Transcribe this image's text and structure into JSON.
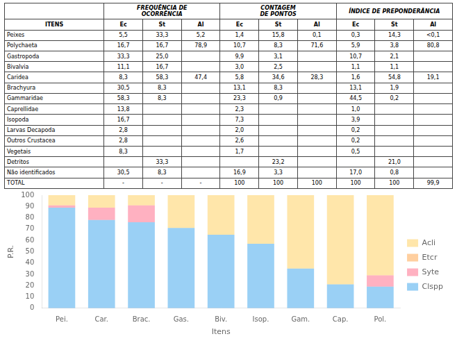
{
  "chart_data": {
    "type": "bar",
    "stacked": true,
    "categories": [
      "Pei.",
      "Car.",
      "Brac.",
      "Gas.",
      "Biv.",
      "Isop.",
      "Gam.",
      "Cap.",
      "Pol."
    ],
    "xlabel": "Itens",
    "ylabel": "P.R.",
    "ylim": [
      0,
      100
    ],
    "yticks": [
      0,
      10,
      20,
      30,
      40,
      50,
      60,
      70,
      80,
      90,
      100
    ],
    "grid": false,
    "legend": "right",
    "series": [
      {
        "name": "Clspp",
        "values": [
          89,
          78,
          76,
          71,
          65,
          57,
          35,
          21,
          19
        ]
      },
      {
        "name": "Syte",
        "values": [
          2,
          11,
          15,
          0,
          0,
          0,
          0,
          0,
          10
        ]
      },
      {
        "name": "Etcr",
        "values": [
          0,
          0,
          0,
          0,
          0,
          0,
          0,
          0,
          0
        ]
      },
      {
        "name": "Acli",
        "values": [
          9,
          11,
          9,
          29,
          35,
          43,
          65,
          79,
          71
        ]
      }
    ]
  },
  "table": {
    "group_headers": [
      "FREQUÊNCIA DE\nOCORRÊNCIA",
      "CONTAGEM\nDE PONTOS",
      "ÍNDICE DE PREPONDERÂNCIA"
    ],
    "header": [
      "ITENS",
      "Ec",
      "St",
      "Al",
      "Ec",
      "St",
      "Al",
      "Ec",
      "St",
      "Al"
    ],
    "rows": [
      [
        "Peixes",
        "5,5",
        "33,3",
        "5,2",
        "1,4",
        "15,8",
        "0,1",
        "0,3",
        "14,3",
        "<0,1"
      ],
      [
        "Polychaeta",
        "16,7",
        "16,7",
        "78,9",
        "10,7",
        "8,3",
        "71,6",
        "5,9",
        "3,8",
        "80,8"
      ],
      [
        "Gastropoda",
        "33,3",
        "25,0",
        null,
        "9,9",
        "3,1",
        null,
        "10,7",
        "2,1",
        null
      ],
      [
        "Bivalvia",
        "11,1",
        "16,7",
        null,
        "3,0",
        "2,5",
        null,
        "1,1",
        "1,1",
        null
      ],
      [
        "Caridea",
        "8,3",
        "58,3",
        "47,4",
        "5,8",
        "34,6",
        "28,3",
        "1,6",
        "54,8",
        "19,1"
      ],
      [
        "Brachyura",
        "30,5",
        "8,3",
        null,
        "13,1",
        "8,3",
        null,
        "13,1",
        "1,9",
        null
      ],
      [
        "Gammaridae",
        "58,3",
        "8,3",
        null,
        "23,3",
        "0,9",
        null,
        "44,5",
        "0,2",
        null
      ],
      [
        "Caprellidae",
        "13,8",
        null,
        null,
        "2,3",
        null,
        null,
        "1,0",
        null,
        null
      ],
      [
        "Isopoda",
        "16,7",
        null,
        null,
        "7,3",
        null,
        null,
        "3,9",
        null,
        null
      ],
      [
        "Larvas Decapoda",
        "2,8",
        null,
        null,
        "2,0",
        null,
        null,
        "0,2",
        null,
        null
      ],
      [
        "Outros Crustacea",
        "2,8",
        null,
        null,
        "2,6",
        null,
        null,
        "0,2",
        null,
        null
      ],
      [
        "Vegetais",
        "8,3",
        null,
        null,
        "1,7",
        null,
        null,
        "0,5",
        null,
        null
      ],
      [
        "Detritos",
        null,
        "33,3",
        null,
        null,
        "23,2",
        null,
        null,
        "21,0",
        null
      ],
      [
        "Não identificados",
        "30,5",
        "8,3",
        null,
        "16,9",
        "3,3",
        null,
        "17,0",
        "0,8",
        null
      ],
      [
        "TOTAL",
        "-",
        "-",
        "-",
        "100",
        "100",
        "100",
        "100",
        "100",
        "99,9"
      ]
    ]
  }
}
